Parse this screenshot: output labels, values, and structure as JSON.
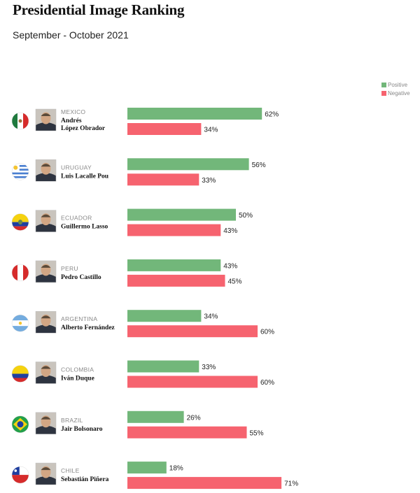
{
  "chart_data": {
    "type": "bar",
    "title": "Presidential Image Ranking",
    "subtitle": "September - October 2021",
    "legend": [
      {
        "name": "Positive",
        "color": "#72b77a"
      },
      {
        "name": "Negative",
        "color": "#f6636f"
      }
    ],
    "legend_position": "top-right",
    "value_suffix": "%",
    "categories": [
      {
        "country": "MEXICO",
        "name_lines": [
          "Andrés",
          "López Obrador"
        ],
        "flag": "mexico-flag-icon",
        "photo": "lopez-obrador-portrait"
      },
      {
        "country": "URUGUAY",
        "name_lines": [
          "Luis Lacalle Pou"
        ],
        "flag": "uruguay-flag-icon",
        "photo": "lacalle-pou-portrait"
      },
      {
        "country": "ECUADOR",
        "name_lines": [
          "Guillermo Lasso"
        ],
        "flag": "ecuador-flag-icon",
        "photo": "lasso-portrait"
      },
      {
        "country": "PERU",
        "name_lines": [
          "Pedro Castillo"
        ],
        "flag": "peru-flag-icon",
        "photo": "castillo-portrait"
      },
      {
        "country": "ARGENTINA",
        "name_lines": [
          "Alberto Fernández"
        ],
        "flag": "argentina-flag-icon",
        "photo": "fernandez-portrait"
      },
      {
        "country": "COLOMBIA",
        "name_lines": [
          "Iván Duque"
        ],
        "flag": "colombia-flag-icon",
        "photo": "duque-portrait"
      },
      {
        "country": "BRAZIL",
        "name_lines": [
          "Jair Bolsonaro"
        ],
        "flag": "brazil-flag-icon",
        "photo": "bolsonaro-portrait"
      },
      {
        "country": "CHILE",
        "name_lines": [
          "Sebastián Piñera"
        ],
        "flag": "chile-flag-icon",
        "photo": "pinera-portrait"
      }
    ],
    "series": [
      {
        "name": "Positive",
        "color": "#72b77a",
        "values": [
          62,
          56,
          50,
          43,
          34,
          33,
          26,
          18
        ]
      },
      {
        "name": "Negative",
        "color": "#f6636f",
        "values": [
          34,
          33,
          43,
          45,
          60,
          60,
          55,
          71
        ]
      }
    ],
    "xlim": [
      0,
      100
    ],
    "grid": false
  }
}
